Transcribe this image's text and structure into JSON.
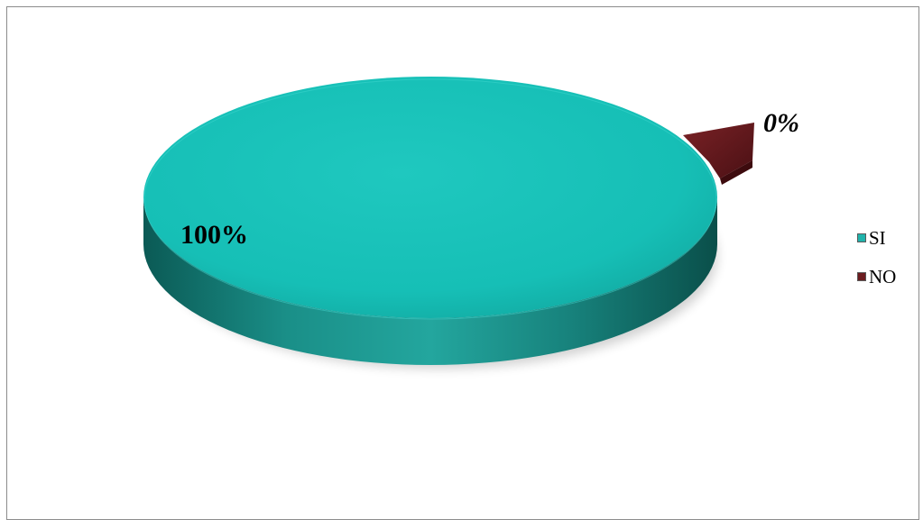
{
  "chart_data": {
    "type": "pie",
    "categories": [
      "SI",
      "NO"
    ],
    "values": [
      100,
      0
    ],
    "data_labels": [
      "100%",
      "0%"
    ],
    "colors": [
      "#20b3ab",
      "#6b1c1f"
    ],
    "legend": {
      "entries": [
        "SI",
        "NO"
      ],
      "placement": "right"
    },
    "style": "3d"
  }
}
